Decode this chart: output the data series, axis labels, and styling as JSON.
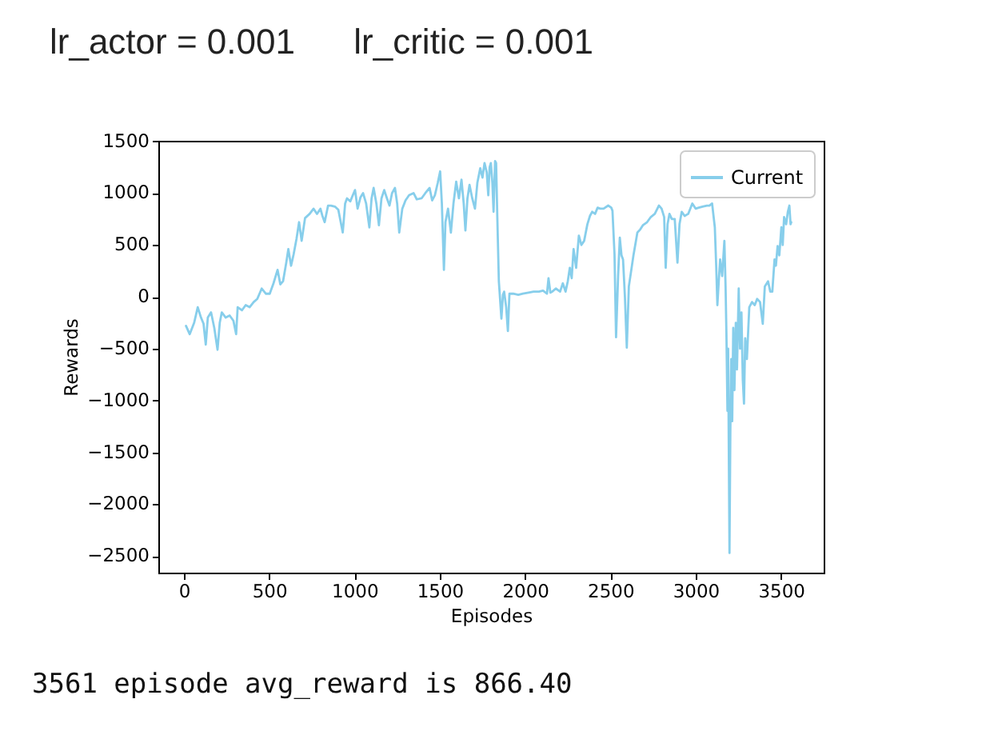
{
  "chart_data": {
    "type": "line",
    "title": "lr_actor = 0.001      lr_critic = 0.001",
    "xlabel": "Episodes",
    "ylabel": "Rewards",
    "annotations": [
      "3561 episode avg_reward is 866.40"
    ],
    "legend": "top right",
    "grid": false,
    "xlim": [
      -150,
      3750
    ],
    "xticks": [
      0,
      500,
      1000,
      1500,
      2000,
      2500,
      3000,
      3500
    ],
    "ylim": [
      -2660,
      1505
    ],
    "yticks": [
      -2500,
      -2000,
      -1500,
      -1000,
      -500,
      0,
      500,
      1000,
      1500
    ],
    "x": [
      12,
      34,
      60,
      81,
      100,
      115,
      128,
      140,
      159,
      178,
      197,
      210,
      222,
      245,
      268,
      290,
      306,
      315,
      340,
      362,
      385,
      409,
      430,
      456,
      480,
      503,
      525,
      549,
      565,
      581,
      600,
      612,
      628,
      643,
      660,
      675,
      690,
      710,
      737,
      760,
      780,
      800,
      812,
      825,
      845,
      862,
      885,
      905,
      931,
      945,
      956,
      975,
      990,
      1003,
      1018,
      1035,
      1050,
      1068,
      1087,
      1100,
      1112,
      1128,
      1143,
      1158,
      1174,
      1190,
      1205,
      1220,
      1237,
      1250,
      1262,
      1280,
      1299,
      1320,
      1346,
      1365,
      1393,
      1415,
      1440,
      1455,
      1471,
      1488,
      1502,
      1512,
      1524,
      1533,
      1548,
      1565,
      1580,
      1596,
      1612,
      1627,
      1640,
      1650,
      1662,
      1674,
      1690,
      1706,
      1720,
      1737,
      1750,
      1762,
      1775,
      1784,
      1792,
      1799,
      1808,
      1815,
      1824,
      1830,
      1837,
      1846,
      1861,
      1870,
      1877,
      1889,
      1899,
      1908,
      1930,
      1960,
      1987,
      2020,
      2050,
      2081,
      2105,
      2128,
      2137,
      2148,
      2159,
      2180,
      2205,
      2221,
      2237,
      2250,
      2262,
      2273,
      2284,
      2299,
      2315,
      2330,
      2346,
      2365,
      2380,
      2393,
      2410,
      2425,
      2440,
      2460,
      2487,
      2505,
      2512,
      2524,
      2533,
      2545,
      2555,
      2565,
      2574,
      2585,
      2596,
      2608,
      2618,
      2635,
      2658,
      2675,
      2690,
      2715,
      2737,
      2760,
      2784,
      2800,
      2815,
      2824,
      2835,
      2846,
      2860,
      2877,
      2893,
      2905,
      2918,
      2935,
      2956,
      2968,
      2980,
      3000,
      3018,
      3040,
      3065,
      3080,
      3096,
      3112,
      3120,
      3127,
      3135,
      3143,
      3155,
      3168,
      3175,
      3180,
      3186,
      3190,
      3194,
      3198,
      3203,
      3208,
      3214,
      3220,
      3227,
      3235,
      3242,
      3252,
      3260,
      3268,
      3276,
      3283,
      3290,
      3300,
      3314,
      3330,
      3346,
      3360,
      3377,
      3393,
      3405,
      3424,
      3437,
      3449,
      3462,
      3470,
      3480,
      3490,
      3502,
      3510,
      3518,
      3530,
      3540,
      3549,
      3556,
      3560
    ],
    "series": [
      {
        "name": "Current",
        "color": "#87ceeb",
        "values": [
          -280,
          -360,
          -250,
          -100,
          -200,
          -260,
          -460,
          -200,
          -150,
          -300,
          -510,
          -250,
          -150,
          -200,
          -180,
          -230,
          -360,
          -100,
          -130,
          -80,
          -100,
          -50,
          -20,
          80,
          30,
          30,
          130,
          260,
          120,
          150,
          330,
          460,
          300,
          410,
          560,
          720,
          540,
          760,
          800,
          850,
          800,
          850,
          780,
          720,
          880,
          880,
          870,
          840,
          620,
          900,
          950,
          920,
          980,
          1030,
          850,
          960,
          1000,
          900,
          670,
          950,
          1050,
          900,
          690,
          950,
          1030,
          950,
          880,
          1000,
          1050,
          900,
          620,
          850,
          930,
          980,
          1000,
          940,
          950,
          1000,
          1050,
          930,
          980,
          1100,
          1210,
          900,
          260,
          720,
          850,
          620,
          900,
          1110,
          950,
          1130,
          900,
          640,
          950,
          1080,
          950,
          850,
          1100,
          1240,
          1150,
          1290,
          1200,
          980,
          1250,
          1290,
          1100,
          820,
          1310,
          1290,
          770,
          150,
          -210,
          20,
          50,
          -100,
          -330,
          30,
          30,
          20,
          30,
          40,
          50,
          50,
          60,
          30,
          180,
          40,
          50,
          80,
          50,
          130,
          50,
          150,
          280,
          180,
          460,
          280,
          590,
          500,
          540,
          700,
          780,
          820,
          800,
          860,
          850,
          850,
          880,
          860,
          830,
          410,
          -390,
          200,
          570,
          400,
          360,
          0,
          -490,
          100,
          210,
          400,
          620,
          650,
          690,
          720,
          770,
          800,
          880,
          850,
          770,
          280,
          700,
          800,
          750,
          750,
          330,
          700,
          820,
          780,
          800,
          850,
          900,
          850,
          860,
          870,
          880,
          880,
          900,
          670,
          300,
          -80,
          150,
          360,
          200,
          540,
          100,
          -360,
          -1100,
          -500,
          -1500,
          -2470,
          -1300,
          -600,
          -1200,
          -300,
          -900,
          -250,
          -700,
          80,
          -500,
          -150,
          -800,
          -1030,
          -400,
          -600,
          -100,
          -50,
          -80,
          -20,
          -50,
          -260,
          100,
          150,
          50,
          50,
          360,
          300,
          490,
          400,
          670,
          500,
          770,
          700,
          820,
          880,
          700,
          720
        ]
      }
    ]
  }
}
